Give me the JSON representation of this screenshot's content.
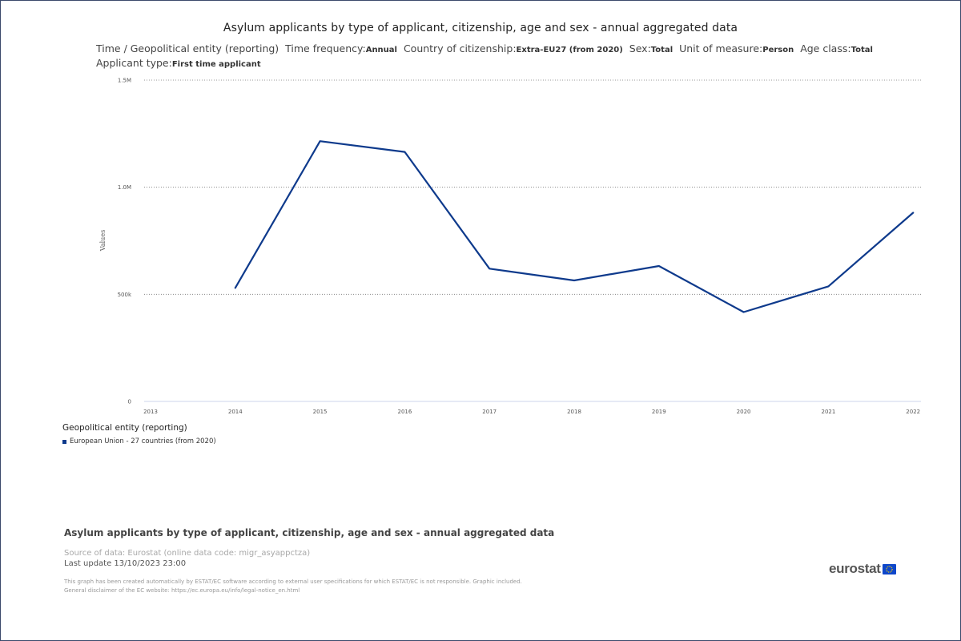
{
  "title": "Asylum applicants by type of applicant, citizenship, age and sex - annual aggregated data",
  "filters": [
    {
      "key": "Time / Geopolitical entity (reporting)",
      "value": ""
    },
    {
      "key": "Time frequency:",
      "value": "Annual"
    },
    {
      "key": "Country of citizenship:",
      "value": "Extra-EU27 (from 2020)"
    },
    {
      "key": "Sex:",
      "value": "Total"
    },
    {
      "key": "Unit of measure:",
      "value": "Person"
    },
    {
      "key": "Age class:",
      "value": "Total"
    },
    {
      "key": "Applicant type:",
      "value": "First time applicant"
    }
  ],
  "legend": {
    "title": "Geopolitical entity (reporting)",
    "items": [
      {
        "label": "European Union - 27 countries (from 2020)",
        "color": "#0e3a8c"
      }
    ]
  },
  "footer": {
    "title": "Asylum applicants by type of applicant, citizenship, age and sex - annual aggregated data",
    "source": "Source of data: Eurostat (online data code: migr_asyappctza)",
    "last_update": "Last update 13/10/2023 23:00",
    "disclaimer_1": "This graph has been created automatically by ESTAT/EC software according to external user specifications for which ESTAT/EC is not responsible. Graphic included.",
    "disclaimer_2": "General disclaimer of the EC website: https://ec.europa.eu/info/legal-notice_en.html"
  },
  "logo": {
    "text": "eurostat",
    "flag": "EU flag"
  },
  "chart_data": {
    "type": "line",
    "x": [
      "2013",
      "2014",
      "2015",
      "2016",
      "2017",
      "2018",
      "2019",
      "2020",
      "2021",
      "2022"
    ],
    "series": [
      {
        "name": "European Union - 27 countries (from 2020)",
        "color": "#0e3a8c",
        "values": [
          null,
          530000,
          1215000,
          1165000,
          620000,
          565000,
          632000,
          417000,
          537000,
          881000
        ]
      }
    ],
    "ylabel": "Values",
    "yticks": [
      {
        "value": 0,
        "label": "0"
      },
      {
        "value": 500000,
        "label": "500k"
      },
      {
        "value": 1000000,
        "label": "1.0M"
      },
      {
        "value": 1500000,
        "label": "1.5M"
      }
    ],
    "ylim": [
      0,
      1500000
    ],
    "grid": "horizontal-dotted"
  }
}
